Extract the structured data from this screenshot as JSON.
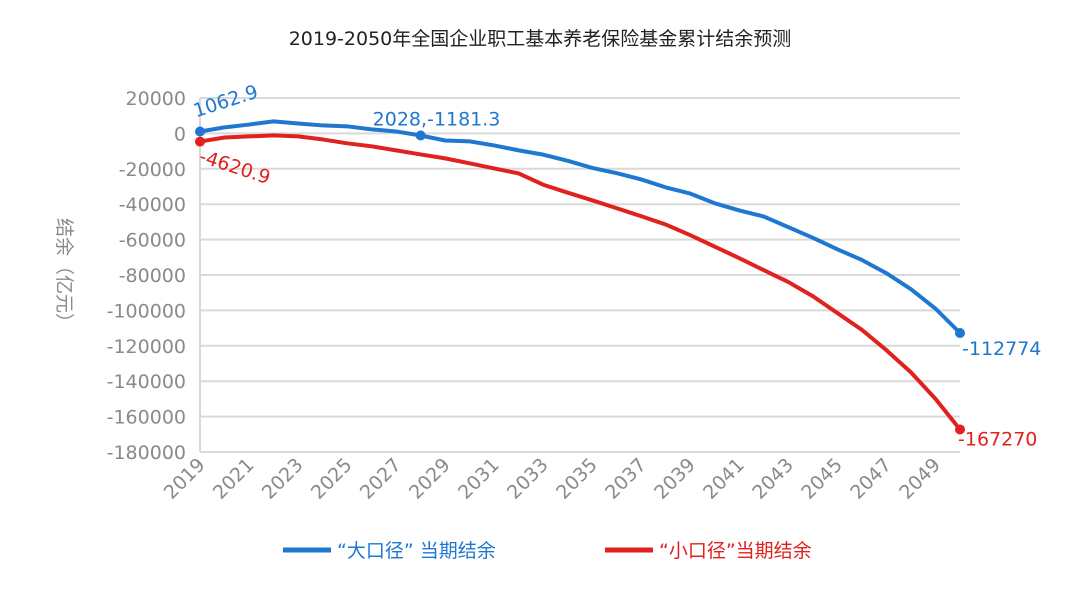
{
  "chart_data": {
    "type": "line",
    "title": "2019-2050年全国企业职工基本养老保险基金累计结余预测",
    "ylabel": "结余（亿元）",
    "xlabel": "",
    "ylim": [
      -180000,
      20000
    ],
    "yticks": [
      20000,
      0,
      -20000,
      -40000,
      -60000,
      -80000,
      -100000,
      -120000,
      -140000,
      -160000,
      -180000
    ],
    "xticks": [
      "2019",
      "2021",
      "2023",
      "2025",
      "2027",
      "2029",
      "2031",
      "2033",
      "2035",
      "2037",
      "2039",
      "2041",
      "2043",
      "2045",
      "2047",
      "2049"
    ],
    "grid": true,
    "legend_position": "bottom",
    "x": [
      2019,
      2020,
      2021,
      2022,
      2023,
      2024,
      2025,
      2026,
      2027,
      2028,
      2029,
      2030,
      2031,
      2032,
      2033,
      2034,
      2035,
      2036,
      2037,
      2038,
      2039,
      2040,
      2041,
      2042,
      2043,
      2044,
      2045,
      2046,
      2047,
      2048,
      2049,
      2050
    ],
    "series": [
      {
        "name": "“大口径” 当期结余",
        "color": "#1f77d0",
        "values": [
          1062.9,
          3400,
          5000,
          6800,
          5600,
          4500,
          4000,
          2300,
          1100,
          -1181.3,
          -4000,
          -4500,
          -6800,
          -9600,
          -12000,
          -15500,
          -19500,
          -22500,
          -26000,
          -30500,
          -34000,
          -39500,
          -43500,
          -47000,
          -53000,
          -59000,
          -65500,
          -71500,
          -79000,
          -88000,
          -99000,
          -112774
        ]
      },
      {
        "name": "“小口径”当期结余",
        "color": "#e0211d",
        "values": [
          -4620.9,
          -2300,
          -1700,
          -1100,
          -1700,
          -3400,
          -5600,
          -7300,
          -9600,
          -11900,
          -14100,
          -16900,
          -19800,
          -22600,
          -29000,
          -33500,
          -37800,
          -42300,
          -46800,
          -51500,
          -57500,
          -64000,
          -70500,
          -77300,
          -84000,
          -92000,
          -101500,
          -111000,
          -122500,
          -135000,
          -150000,
          -167270
        ]
      }
    ],
    "annotations": [
      {
        "series": 0,
        "x": 2019,
        "text": "1062.9"
      },
      {
        "series": 0,
        "x": 2028,
        "text": "2028,-1181.3"
      },
      {
        "series": 0,
        "x": 2050,
        "text": "-112774"
      },
      {
        "series": 1,
        "x": 2019,
        "text": "-4620.9"
      },
      {
        "series": 1,
        "x": 2050,
        "text": "-167270"
      }
    ]
  }
}
